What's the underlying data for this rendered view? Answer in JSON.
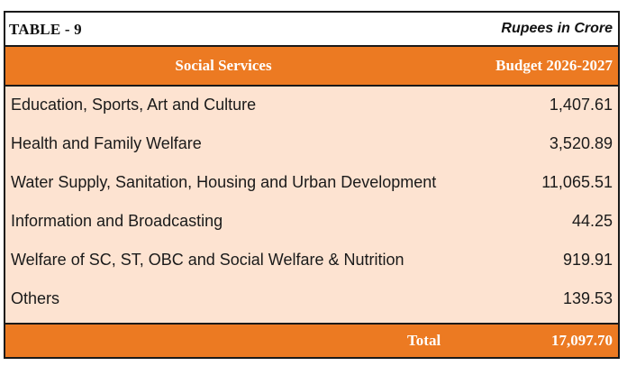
{
  "table": {
    "caption_left": "TABLE - 9",
    "caption_right": "Rupees in Crore",
    "header": {
      "col1": "Social Services",
      "col2": "Budget 2026-2027"
    },
    "rows": [
      {
        "label": "Education, Sports, Art and Culture",
        "value": "1,407.61"
      },
      {
        "label": "Health and Family Welfare",
        "value": "3,520.89"
      },
      {
        "label": "Water Supply, Sanitation, Housing and Urban Development",
        "value": "11,065.51"
      },
      {
        "label": "Information and Broadcasting",
        "value": "44.25"
      },
      {
        "label": "Welfare of SC, ST, OBC and Social Welfare & Nutrition",
        "value": "919.91"
      },
      {
        "label": "Others",
        "value": "139.53"
      }
    ],
    "total": {
      "label": "Total",
      "value": "17,097.70"
    }
  },
  "colors": {
    "header_fill": "#ec7a22",
    "body_fill": "#fde3d1",
    "header_text": "#ffffff"
  }
}
